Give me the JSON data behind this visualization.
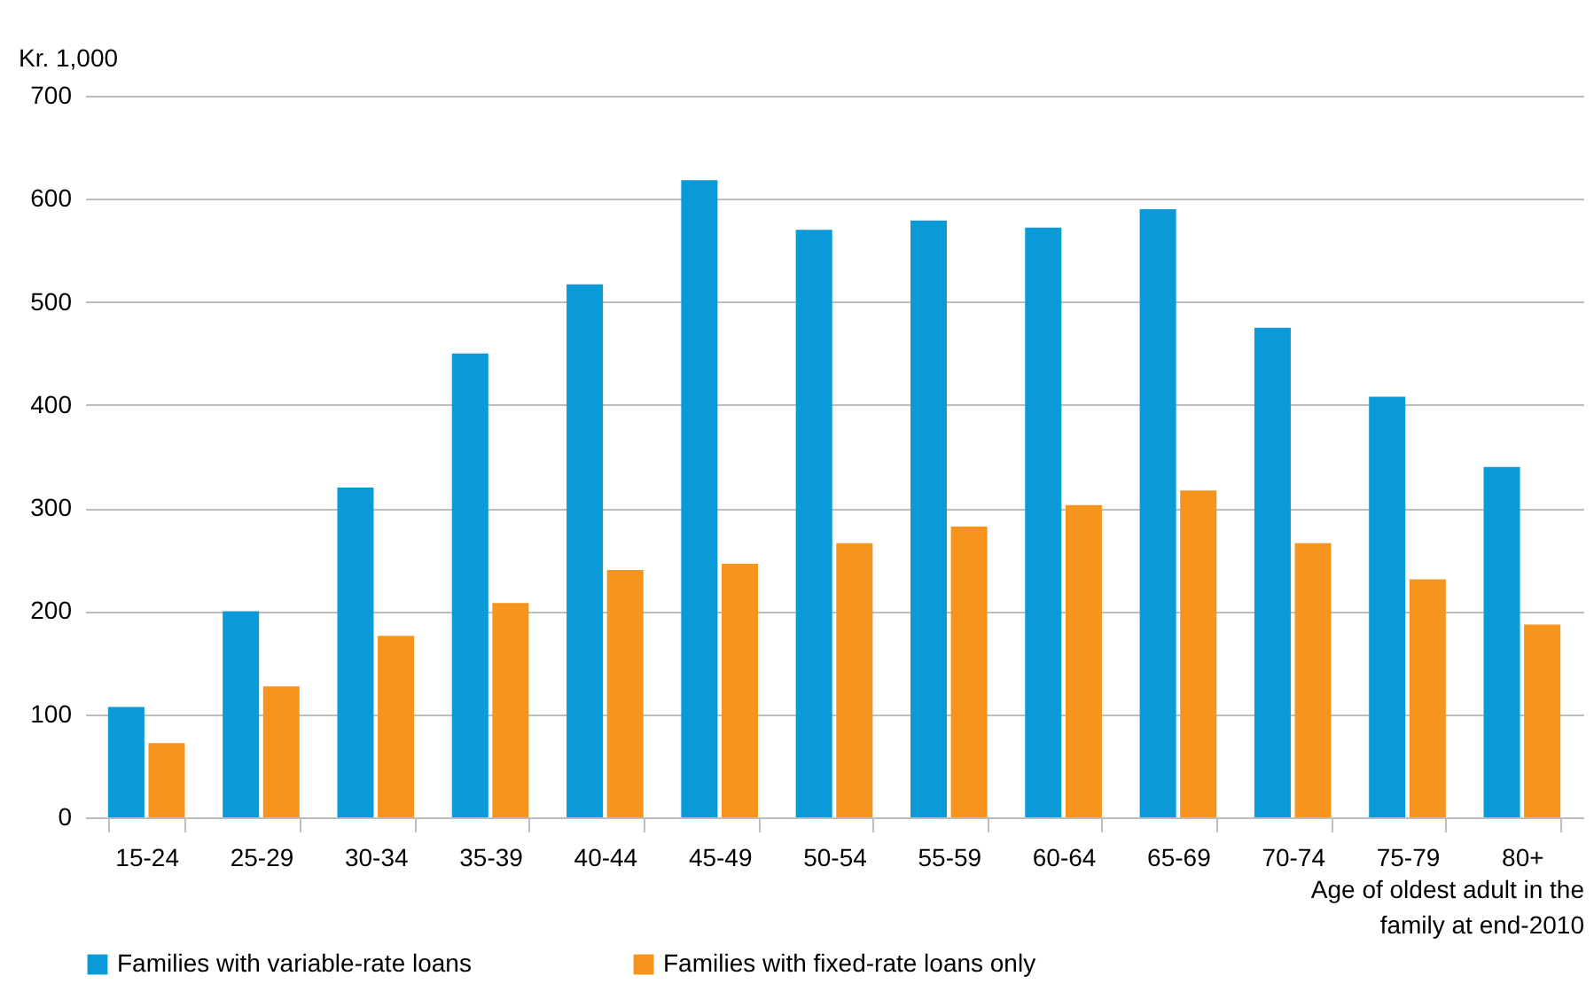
{
  "chart_data": {
    "type": "bar",
    "ylabel": "Kr. 1,000",
    "xlabel": "Age of oldest adult in the family at end-2010",
    "categories": [
      "15-24",
      "25-29",
      "30-34",
      "35-39",
      "40-44",
      "45-49",
      "50-54",
      "55-59",
      "60-64",
      "65-69",
      "70-74",
      "75-79",
      "80+"
    ],
    "series": [
      {
        "name": "Families with variable-rate loans",
        "color": "#0a9ad7",
        "values": [
          107,
          200,
          320,
          450,
          517,
          618,
          570,
          579,
          572,
          590,
          475,
          408,
          340
        ]
      },
      {
        "name": "Families with fixed-rate loans only",
        "color": "#f7941d",
        "values": [
          72,
          127,
          176,
          208,
          240,
          246,
          266,
          282,
          303,
          317,
          266,
          231,
          187
        ]
      }
    ],
    "ylim": [
      0,
      700
    ],
    "yticks": [
      0,
      100,
      200,
      300,
      400,
      500,
      600,
      700
    ],
    "grid": "y",
    "legend": "bottom"
  }
}
